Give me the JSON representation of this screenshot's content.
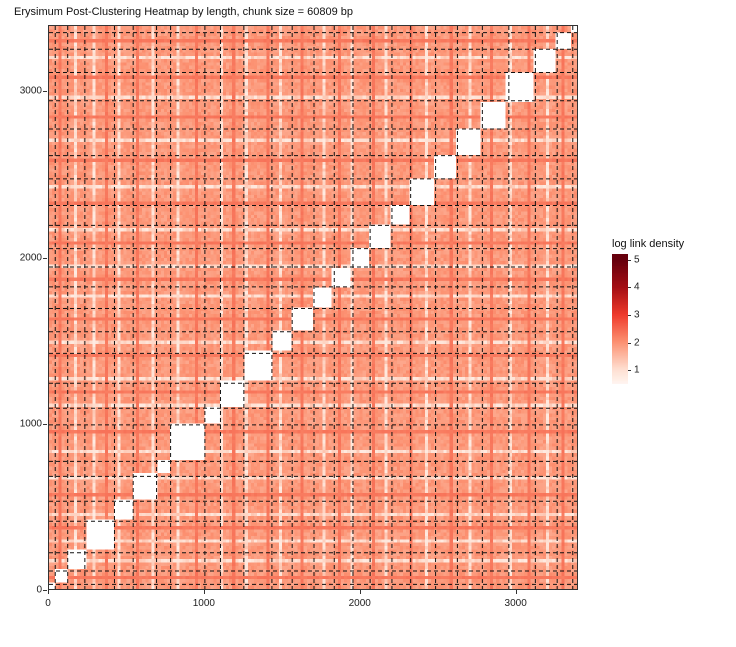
{
  "chart": {
    "type": "heatmap",
    "title": "Erysimum Post-Clustering Heatmap by length, chunk size =  60809 bp",
    "title_fontsize": 11,
    "background_color": "#ffffff",
    "panel_border_color": "#333333",
    "data_domain": {
      "xmin": 0,
      "xmax": 3400,
      "ymin": 0,
      "ymax": 3400
    },
    "x_axis": {
      "ticks": [
        0,
        1000,
        2000,
        3000
      ],
      "tick_fontsize": 10
    },
    "y_axis": {
      "ticks": [
        0,
        1000,
        2000,
        3000
      ],
      "tick_fontsize": 10
    },
    "grid": {
      "style": "dashed",
      "color": "#111111",
      "positions": [
        40,
        120,
        230,
        420,
        540,
        690,
        780,
        1000,
        1100,
        1250,
        1430,
        1560,
        1700,
        1830,
        1950,
        2060,
        2200,
        2320,
        2480,
        2620,
        2780,
        2950,
        3120,
        3260,
        3360
      ]
    },
    "diagonal_blocks": {
      "fill": "#ffffff",
      "breaks": [
        40,
        120,
        230,
        420,
        540,
        690,
        780,
        1000,
        1100,
        1250,
        1430,
        1560,
        1700,
        1830,
        1950,
        2060,
        2200,
        2320,
        2480,
        2620,
        2780,
        2950,
        3120,
        3260,
        3360
      ]
    },
    "colorscale": {
      "label": "log link density",
      "label_fontsize": 11,
      "type": "sequential",
      "low_color": "#fff5f0",
      "mid_color": "#fb8a62",
      "high_color": "#67000d",
      "stops": [
        {
          "value": 0.5,
          "color": "#fff5f0"
        },
        {
          "value": 1.0,
          "color": "#fee0d2"
        },
        {
          "value": 2.0,
          "color": "#fc9272"
        },
        {
          "value": 3.0,
          "color": "#ef3b2c"
        },
        {
          "value": 4.0,
          "color": "#a50f15"
        },
        {
          "value": 5.0,
          "color": "#67000d"
        }
      ],
      "ticks": [
        1,
        2,
        3,
        4,
        5
      ],
      "tick_fontsize": 10,
      "value_range": {
        "min": 0.5,
        "max": 5.2
      }
    },
    "heatmap_data": {
      "note": "procedurally defined: off-diagonal log link density in range ~1-2.5 with horizontal/vertical banding; diagonal blocks are white (self, no links)",
      "grid_resolution": 170,
      "band_indices_light": [
        8,
        14,
        22,
        33,
        41,
        55,
        63,
        74,
        88,
        97,
        108,
        121,
        135,
        148,
        160
      ],
      "band_indices_dark": [
        3,
        18,
        28,
        47,
        59,
        70,
        81,
        93,
        104,
        116,
        129,
        142,
        154,
        165
      ],
      "base_value": 1.9,
      "light_band_value": 0.9,
      "dark_band_value": 2.4
    }
  }
}
